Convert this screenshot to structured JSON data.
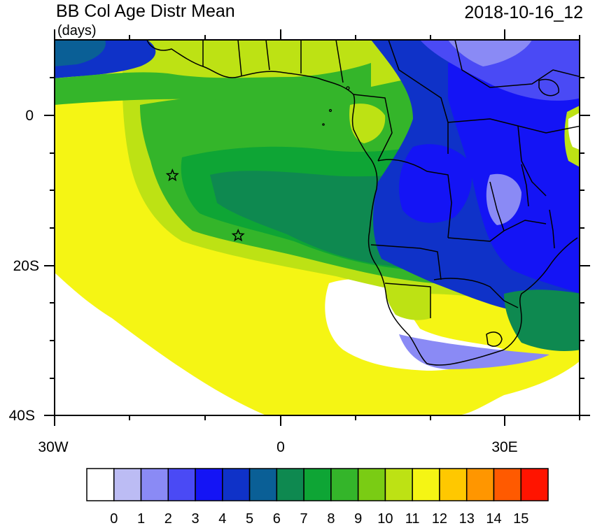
{
  "title": "BB Col Age Distr Mean",
  "units": "(days)",
  "timestamp": "2018-10-16_12",
  "map": {
    "lon_labels": [
      "30W",
      "0",
      "30E"
    ],
    "lat_labels": [
      "0",
      "20S",
      "40S"
    ],
    "markers": [
      {
        "name": "star-marker-1",
        "lon": -14.5,
        "lat": -8
      },
      {
        "name": "star-marker-2",
        "lon": -5.7,
        "lat": -16
      }
    ]
  },
  "colorbar": {
    "labels": [
      "0",
      "1",
      "2",
      "3",
      "4",
      "5",
      "6",
      "7",
      "8",
      "9",
      "10",
      "11",
      "12",
      "13",
      "14",
      "15"
    ],
    "colors": [
      "#ffffff",
      "#bcbcf4",
      "#8a8af5",
      "#4a4af5",
      "#1414f5",
      "#0f32c8",
      "#0a5f96",
      "#0e8950",
      "#0ea535",
      "#34b52a",
      "#7acc14",
      "#bde214",
      "#f5f514",
      "#ffc800",
      "#ff9600",
      "#ff5a00",
      "#ff1400"
    ]
  },
  "palette": {
    "ocean_clean": "#ffffff",
    "yellow": "#f5f514",
    "light_green": "#bde214",
    "yellow_green": "#7acc14",
    "green": "#34b52a",
    "mid_green": "#0ea535",
    "teal": "#0e8950",
    "dark_teal": "#0a5f96",
    "navy": "#0f32c8",
    "blue": "#1414f5",
    "light_blue": "#4a4af5",
    "lavender": "#8a8af5"
  }
}
